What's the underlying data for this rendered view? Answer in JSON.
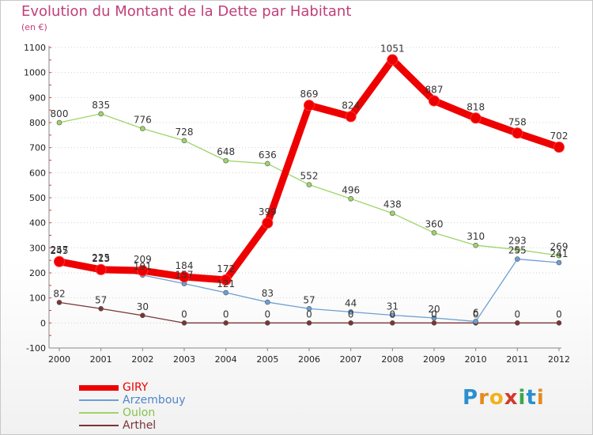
{
  "title": "Evolution du Montant de la Dette par Habitant",
  "subtitle": "(en €)",
  "logo": {
    "text": "Proxiti",
    "colors": [
      "#2a8fd0",
      "#e58a1c",
      "#f0b21c",
      "#d33a2a",
      "#3aa84a",
      "#2a8fd0",
      "#e58a1c"
    ]
  },
  "chart_data": {
    "type": "line",
    "x": [
      "2000",
      "2001",
      "2002",
      "2003",
      "2004",
      "2005",
      "2006",
      "2007",
      "2008",
      "2009",
      "2010",
      "2011",
      "2012"
    ],
    "ylim": [
      -100,
      1100
    ],
    "yticks": [
      "-100",
      "0",
      "100",
      "200",
      "300",
      "400",
      "500",
      "600",
      "700",
      "800",
      "900",
      "1000",
      "1100"
    ],
    "grid": "horizontal",
    "legend_position": "bottom-left",
    "series": [
      {
        "name": "GIRY",
        "color": "#ee0000",
        "values": [
          245,
          213,
          209,
          184,
          172,
          399,
          869,
          824,
          1051,
          887,
          818,
          758,
          702
        ],
        "labels": [
          "245",
          "213",
          "209",
          "184",
          "172",
          "399",
          "869",
          "824",
          "1051",
          "887",
          "818",
          "758",
          "702"
        ]
      },
      {
        "name": "Arzembouy",
        "color": "#6d9fd2",
        "values": [
          257,
          225,
          191,
          157,
          121,
          83,
          57,
          44,
          31,
          20,
          6,
          255,
          241
        ],
        "labels": [
          "257",
          "225",
          "191",
          "157",
          "121",
          "83",
          "57",
          "44",
          "31",
          "20",
          "6",
          "255",
          "241"
        ]
      },
      {
        "name": "Oulon",
        "color": "#9ed46a",
        "values": [
          800,
          835,
          776,
          728,
          648,
          636,
          552,
          496,
          438,
          360,
          310,
          293,
          269
        ],
        "labels": [
          "800",
          "835",
          "776",
          "728",
          "648",
          "636",
          "552",
          "496",
          "438",
          "360",
          "310",
          "293",
          "269"
        ]
      },
      {
        "name": "Arthel",
        "color": "#7a3535",
        "values": [
          82,
          57,
          30,
          0,
          0,
          0,
          0,
          0,
          0,
          0,
          0,
          0,
          0
        ],
        "labels": [
          "82",
          "57",
          "30",
          "0",
          "0",
          "0",
          "0",
          "0",
          "0",
          "0",
          "0",
          "0",
          "0"
        ]
      }
    ]
  }
}
